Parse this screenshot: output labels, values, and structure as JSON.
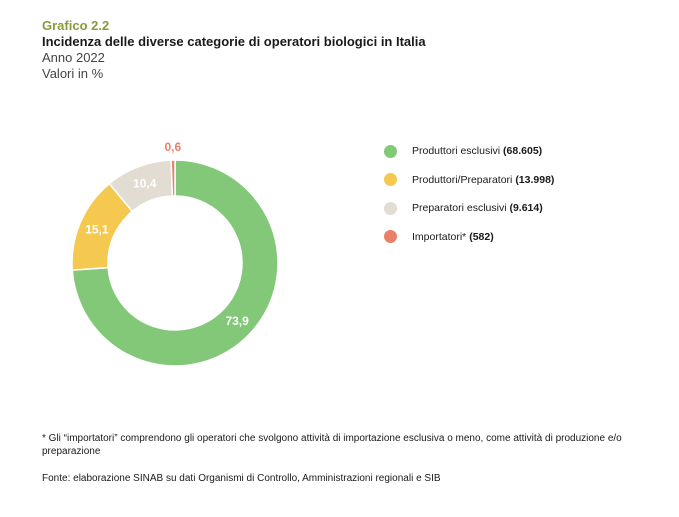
{
  "header": {
    "grafico": "Grafico 2.2",
    "title": "Incidenza delle diverse categorie di operatori biologici in Italia",
    "year": "Anno 2022",
    "unit": "Valori in %"
  },
  "chart_data": {
    "type": "pie",
    "style": "donut",
    "categories": [
      "Produttori esclusivi",
      "Produttori/Preparatori",
      "Preparatori esclusivi",
      "Importatori*"
    ],
    "values": [
      73.9,
      15.1,
      10.4,
      0.6
    ],
    "value_labels": [
      "73,9",
      "15,1",
      "10,4",
      "0,6"
    ],
    "counts": [
      "(68.605)",
      "(13.998)",
      "(9.614)",
      "(582)"
    ],
    "colors": [
      "#82c878",
      "#f5c84f",
      "#e3dcd2",
      "#e8806a"
    ],
    "label_colors": [
      "#ffffff",
      "#ffffff",
      "#ffffff",
      "#e8806a"
    ],
    "legend_position": "right"
  },
  "footnote": "* Gli “importatori” comprendono gli operatori che svolgono attività di importazione esclusiva o meno, come attività di produzione e/o preparazione",
  "source": "Fonte: elaborazione SINAB su dati Organismi di Controllo, Amministrazioni regionali e SIB"
}
